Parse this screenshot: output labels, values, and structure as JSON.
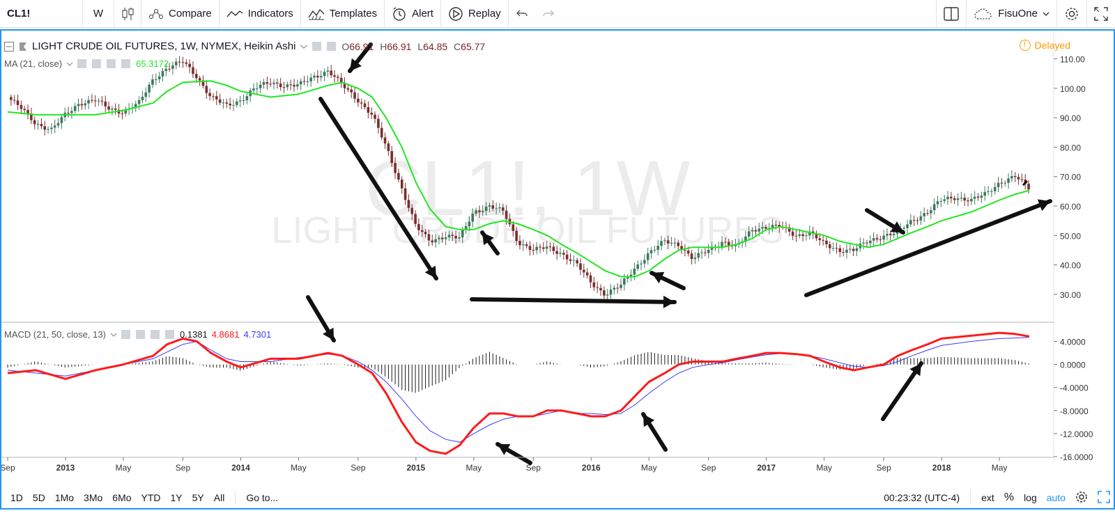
{
  "toolbar": {
    "symbol": "CL1!",
    "interval": "W",
    "compare": "Compare",
    "indicators": "Indicators",
    "templates": "Templates",
    "alert": "Alert",
    "replay": "Replay",
    "account": "FisuOne"
  },
  "legend": {
    "title": "LIGHT CRUDE OIL FUTURES, 1W, NYMEX, Heikin Ashi",
    "o_label": "O",
    "o": "66.91",
    "h_label": "H",
    "h": "66.91",
    "l_label": "L",
    "l": "64.85",
    "c_label": "C",
    "c": "65.77",
    "ma": "MA (21, close)",
    "ma_value": "65.3172",
    "macd": "MACD (21, 50, close, 13)",
    "macd_hist": "0.1381",
    "macd_line": "4.8681",
    "macd_signal": "4.7301",
    "delayed": "Delayed"
  },
  "watermark": {
    "symbol": "CL1!, 1W",
    "name": "LIGHT CRUDE OIL FUTURES"
  },
  "bottombar": {
    "ranges": [
      "1D",
      "5D",
      "1Mo",
      "3Mo",
      "6Mo",
      "YTD",
      "1Y",
      "5Y",
      "All"
    ],
    "goto": "Go to...",
    "clock": "00:23:32 (UTC-4)",
    "ext": "ext",
    "percent": "%",
    "log": "log",
    "auto": "auto"
  },
  "colors": {
    "up": "#3d7a5e",
    "down": "#7a2e2e",
    "ma": "#22e622",
    "macd": "#ff1a1a",
    "signal": "#3a3aff",
    "hist": "#1a1a1a",
    "accent": "#2196f3"
  },
  "chart_data": {
    "type": "candlestick",
    "price_ticks": [
      "110.00",
      "100.00",
      "90.00",
      "80.00",
      "70.00",
      "60.00",
      "50.00",
      "40.00",
      "30.00"
    ],
    "macd_ticks": [
      "4.0000",
      "0.0000",
      "-4.0000",
      "-8.0000",
      "-12.0000",
      "-16.0000"
    ],
    "x_labels": [
      "Sep",
      "2013",
      "May",
      "Sep",
      "2014",
      "May",
      "Sep",
      "2015",
      "May",
      "Sep",
      "2016",
      "May",
      "Sep",
      "2017",
      "May",
      "Sep",
      "2018",
      "May"
    ],
    "price_path": [
      [
        2012.67,
        97
      ],
      [
        2012.75,
        93
      ],
      [
        2012.83,
        88
      ],
      [
        2012.92,
        86
      ],
      [
        2013.0,
        91
      ],
      [
        2013.08,
        95
      ],
      [
        2013.17,
        96
      ],
      [
        2013.25,
        93
      ],
      [
        2013.33,
        92
      ],
      [
        2013.42,
        95
      ],
      [
        2013.5,
        103
      ],
      [
        2013.58,
        107
      ],
      [
        2013.67,
        109
      ],
      [
        2013.75,
        104
      ],
      [
        2013.83,
        97
      ],
      [
        2013.92,
        94
      ],
      [
        2014.0,
        96
      ],
      [
        2014.08,
        100
      ],
      [
        2014.17,
        102
      ],
      [
        2014.25,
        101
      ],
      [
        2014.33,
        101
      ],
      [
        2014.42,
        104
      ],
      [
        2014.5,
        106
      ],
      [
        2014.58,
        101
      ],
      [
        2014.67,
        96
      ],
      [
        2014.75,
        91
      ],
      [
        2014.83,
        80
      ],
      [
        2014.92,
        66
      ],
      [
        2015.0,
        53
      ],
      [
        2015.08,
        48
      ],
      [
        2015.17,
        50
      ],
      [
        2015.25,
        49
      ],
      [
        2015.33,
        58
      ],
      [
        2015.42,
        60
      ],
      [
        2015.5,
        58
      ],
      [
        2015.58,
        48
      ],
      [
        2015.67,
        45
      ],
      [
        2015.75,
        46
      ],
      [
        2015.83,
        44
      ],
      [
        2015.92,
        40
      ],
      [
        2016.0,
        34
      ],
      [
        2016.08,
        30
      ],
      [
        2016.17,
        33
      ],
      [
        2016.25,
        39
      ],
      [
        2016.33,
        44
      ],
      [
        2016.42,
        48
      ],
      [
        2016.5,
        47
      ],
      [
        2016.58,
        42
      ],
      [
        2016.67,
        45
      ],
      [
        2016.75,
        48
      ],
      [
        2016.83,
        46
      ],
      [
        2016.92,
        52
      ],
      [
        2017.0,
        53
      ],
      [
        2017.08,
        53
      ],
      [
        2017.17,
        50
      ],
      [
        2017.25,
        51
      ],
      [
        2017.33,
        47
      ],
      [
        2017.42,
        45
      ],
      [
        2017.5,
        45
      ],
      [
        2017.58,
        48
      ],
      [
        2017.67,
        50
      ],
      [
        2017.75,
        51
      ],
      [
        2017.83,
        55
      ],
      [
        2017.92,
        58
      ],
      [
        2018.0,
        62
      ],
      [
        2018.08,
        63
      ],
      [
        2018.17,
        62
      ],
      [
        2018.25,
        64
      ],
      [
        2018.33,
        68
      ],
      [
        2018.42,
        70
      ],
      [
        2018.5,
        66
      ]
    ],
    "ma_values": [
      [
        2012.67,
        92
      ],
      [
        2012.83,
        91
      ],
      [
        2013.0,
        91
      ],
      [
        2013.17,
        91
      ],
      [
        2013.33,
        92.5
      ],
      [
        2013.5,
        95
      ],
      [
        2013.58,
        99
      ],
      [
        2013.67,
        102
      ],
      [
        2013.83,
        102.5
      ],
      [
        2013.92,
        101
      ],
      [
        2014.0,
        99
      ],
      [
        2014.17,
        97
      ],
      [
        2014.33,
        98
      ],
      [
        2014.5,
        101
      ],
      [
        2014.58,
        102
      ],
      [
        2014.67,
        100
      ],
      [
        2014.75,
        97
      ],
      [
        2014.83,
        90
      ],
      [
        2014.92,
        80
      ],
      [
        2015.0,
        68
      ],
      [
        2015.08,
        59
      ],
      [
        2015.17,
        53
      ],
      [
        2015.25,
        52
      ],
      [
        2015.33,
        52
      ],
      [
        2015.42,
        54
      ],
      [
        2015.5,
        55
      ],
      [
        2015.58,
        54
      ],
      [
        2015.67,
        52
      ],
      [
        2015.75,
        50
      ],
      [
        2015.83,
        47
      ],
      [
        2015.92,
        44
      ],
      [
        2016.0,
        41
      ],
      [
        2016.08,
        38
      ],
      [
        2016.17,
        36
      ],
      [
        2016.25,
        36
      ],
      [
        2016.33,
        38
      ],
      [
        2016.42,
        42
      ],
      [
        2016.5,
        45
      ],
      [
        2016.58,
        46
      ],
      [
        2016.67,
        46
      ],
      [
        2016.75,
        46
      ],
      [
        2016.83,
        47
      ],
      [
        2016.92,
        49
      ],
      [
        2017.0,
        52
      ],
      [
        2017.08,
        53
      ],
      [
        2017.17,
        52
      ],
      [
        2017.25,
        51
      ],
      [
        2017.33,
        50
      ],
      [
        2017.42,
        48
      ],
      [
        2017.5,
        47
      ],
      [
        2017.58,
        46
      ],
      [
        2017.67,
        47
      ],
      [
        2017.75,
        49
      ],
      [
        2017.83,
        51
      ],
      [
        2017.92,
        53
      ],
      [
        2018.0,
        55
      ],
      [
        2018.17,
        58
      ],
      [
        2018.33,
        62
      ],
      [
        2018.42,
        64
      ],
      [
        2018.5,
        65.3
      ]
    ],
    "macd_values": [
      [
        2012.67,
        -1.5
      ],
      [
        2012.83,
        -1
      ],
      [
        2013.0,
        -2.5
      ],
      [
        2013.17,
        -1
      ],
      [
        2013.33,
        0
      ],
      [
        2013.5,
        1.5
      ],
      [
        2013.58,
        3.5
      ],
      [
        2013.67,
        4.5
      ],
      [
        2013.75,
        4
      ],
      [
        2013.83,
        2
      ],
      [
        2013.92,
        0.5
      ],
      [
        2014.0,
        -0.5
      ],
      [
        2014.17,
        1
      ],
      [
        2014.33,
        1
      ],
      [
        2014.5,
        2
      ],
      [
        2014.58,
        1.5
      ],
      [
        2014.67,
        0
      ],
      [
        2014.75,
        -1.5
      ],
      [
        2014.83,
        -5
      ],
      [
        2014.92,
        -10
      ],
      [
        2015.0,
        -13.5
      ],
      [
        2015.08,
        -15
      ],
      [
        2015.17,
        -15.5
      ],
      [
        2015.25,
        -14
      ],
      [
        2015.33,
        -11
      ],
      [
        2015.42,
        -8.5
      ],
      [
        2015.5,
        -8.5
      ],
      [
        2015.58,
        -9
      ],
      [
        2015.67,
        -9
      ],
      [
        2015.75,
        -8
      ],
      [
        2015.83,
        -8
      ],
      [
        2015.92,
        -8.5
      ],
      [
        2016.0,
        -9
      ],
      [
        2016.08,
        -9
      ],
      [
        2016.17,
        -8
      ],
      [
        2016.25,
        -5.5
      ],
      [
        2016.33,
        -3
      ],
      [
        2016.42,
        -1.5
      ],
      [
        2016.5,
        0
      ],
      [
        2016.58,
        0.5
      ],
      [
        2016.67,
        0.5
      ],
      [
        2016.75,
        0.5
      ],
      [
        2016.83,
        1
      ],
      [
        2016.92,
        1.5
      ],
      [
        2017.0,
        2
      ],
      [
        2017.08,
        2
      ],
      [
        2017.17,
        1.8
      ],
      [
        2017.25,
        1.5
      ],
      [
        2017.33,
        0.5
      ],
      [
        2017.42,
        -0.5
      ],
      [
        2017.5,
        -1
      ],
      [
        2017.58,
        -0.5
      ],
      [
        2017.67,
        0
      ],
      [
        2017.75,
        1.5
      ],
      [
        2017.83,
        2.5
      ],
      [
        2017.92,
        3.5
      ],
      [
        2018.0,
        4.5
      ],
      [
        2018.17,
        5
      ],
      [
        2018.33,
        5.5
      ],
      [
        2018.42,
        5.3
      ],
      [
        2018.5,
        4.87
      ]
    ],
    "signal_values": [
      [
        2012.67,
        -1
      ],
      [
        2012.83,
        -1.5
      ],
      [
        2013.0,
        -2
      ],
      [
        2013.17,
        -1
      ],
      [
        2013.33,
        0
      ],
      [
        2013.5,
        1
      ],
      [
        2013.67,
        3.5
      ],
      [
        2013.75,
        4
      ],
      [
        2013.83,
        2.5
      ],
      [
        2013.92,
        1
      ],
      [
        2014.0,
        0.5
      ],
      [
        2014.17,
        0.5
      ],
      [
        2014.33,
        1.2
      ],
      [
        2014.5,
        1.8
      ],
      [
        2014.58,
        1.5
      ],
      [
        2014.67,
        0.5
      ],
      [
        2014.75,
        -1
      ],
      [
        2014.83,
        -3
      ],
      [
        2014.92,
        -6
      ],
      [
        2015.0,
        -9
      ],
      [
        2015.08,
        -11.5
      ],
      [
        2015.17,
        -13
      ],
      [
        2015.25,
        -13.5
      ],
      [
        2015.33,
        -12
      ],
      [
        2015.42,
        -10.5
      ],
      [
        2015.5,
        -9.5
      ],
      [
        2015.58,
        -9
      ],
      [
        2015.67,
        -9
      ],
      [
        2015.75,
        -8.5
      ],
      [
        2015.83,
        -8
      ],
      [
        2015.92,
        -8.5
      ],
      [
        2016.0,
        -8.5
      ],
      [
        2016.08,
        -8.7
      ],
      [
        2016.17,
        -8.5
      ],
      [
        2016.25,
        -7
      ],
      [
        2016.33,
        -5
      ],
      [
        2016.42,
        -3
      ],
      [
        2016.5,
        -1.5
      ],
      [
        2016.58,
        -0.5
      ],
      [
        2016.67,
        0
      ],
      [
        2016.75,
        0.3
      ],
      [
        2016.83,
        0.8
      ],
      [
        2016.92,
        1.3
      ],
      [
        2017.0,
        1.7
      ],
      [
        2017.08,
        1.9
      ],
      [
        2017.17,
        1.8
      ],
      [
        2017.25,
        1.5
      ],
      [
        2017.33,
        1
      ],
      [
        2017.42,
        0.3
      ],
      [
        2017.5,
        -0.3
      ],
      [
        2017.58,
        -0.5
      ],
      [
        2017.67,
        -0.2
      ],
      [
        2017.75,
        0.5
      ],
      [
        2017.83,
        1.5
      ],
      [
        2017.92,
        2.5
      ],
      [
        2018.0,
        3.3
      ],
      [
        2018.17,
        4
      ],
      [
        2018.33,
        4.5
      ],
      [
        2018.42,
        4.6
      ],
      [
        2018.5,
        4.73
      ]
    ],
    "price_ylim": [
      25,
      112.5
    ],
    "macd_ylim": [
      -16,
      6
    ],
    "xlim": [
      2012.65,
      2018.6
    ],
    "grid": false
  }
}
